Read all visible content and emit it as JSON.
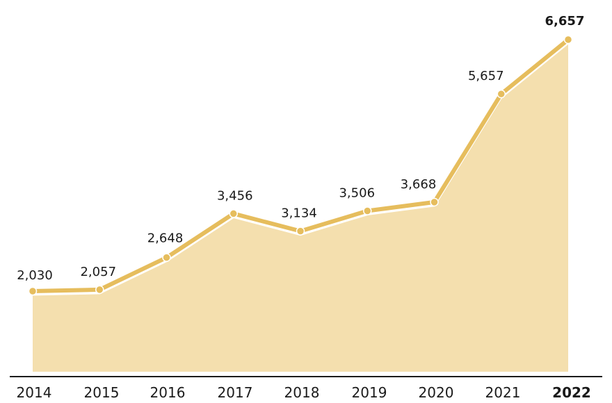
{
  "chart_data": {
    "type": "area",
    "title": "",
    "xlabel": "",
    "ylabel": "",
    "categories": [
      "2014",
      "2015",
      "2016",
      "2017",
      "2018",
      "2019",
      "2020",
      "2021",
      "2022"
    ],
    "values": [
      2030,
      2057,
      2648,
      3456,
      3134,
      3506,
      3668,
      5657,
      6657
    ],
    "data_labels": [
      "2,030",
      "2,057",
      "2,648",
      "3,456",
      "3,134",
      "3,506",
      "3,668",
      "5,657",
      "6,657"
    ],
    "highlighted_category": "2022",
    "ylim": [
      0,
      6657
    ],
    "grid": false,
    "legend": "none",
    "colors": {
      "line": "#e6bd5d",
      "fill": "#f4dfae",
      "marker": "#e6bd5d",
      "axis": "#1a1a1a",
      "text": "#1a1a1a"
    }
  }
}
